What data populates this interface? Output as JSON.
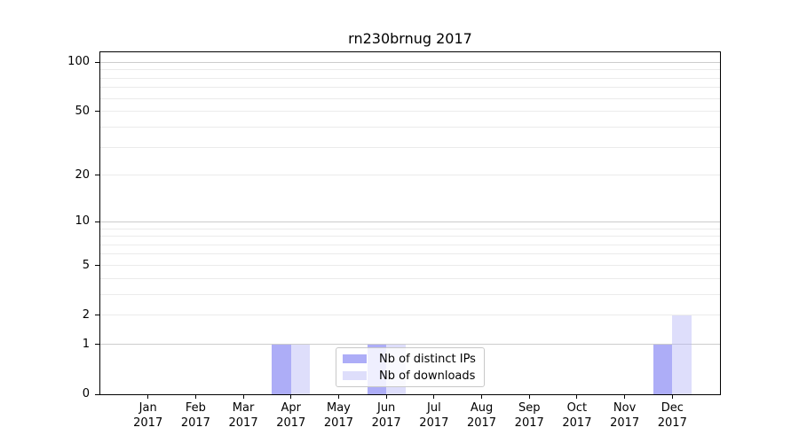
{
  "chart_data": {
    "type": "bar",
    "title": "rn230brnug 2017",
    "categories": [
      "Jan",
      "Feb",
      "Mar",
      "Apr",
      "May",
      "Jun",
      "Jul",
      "Aug",
      "Sep",
      "Oct",
      "Nov",
      "Dec"
    ],
    "year_label": "2017",
    "series": [
      {
        "name": "Nb of distinct IPs",
        "color": "rgba(122,122,242,0.62)",
        "values": [
          0,
          0,
          0,
          1,
          0,
          1,
          0,
          0,
          0,
          0,
          0,
          1
        ]
      },
      {
        "name": "Nb of downloads",
        "color": "rgba(180,180,245,0.44)",
        "values": [
          0,
          0,
          0,
          1,
          0,
          1,
          0,
          0,
          0,
          0,
          0,
          2
        ]
      }
    ],
    "yscale": "log1p",
    "ylim": [
      0,
      115
    ],
    "yticks": [
      0,
      1,
      2,
      5,
      10,
      20,
      50,
      100
    ],
    "major_gridlines": [
      1,
      10,
      100
    ],
    "minor_gridlines": [
      2,
      3,
      4,
      5,
      6,
      7,
      8,
      9,
      20,
      30,
      40,
      50,
      60,
      70,
      80,
      90
    ],
    "grid_major_color": "#cccccc",
    "grid_minor_color": "#ebebeb",
    "axis_color": "#000000",
    "legend_position": "lower-center-inside"
  }
}
